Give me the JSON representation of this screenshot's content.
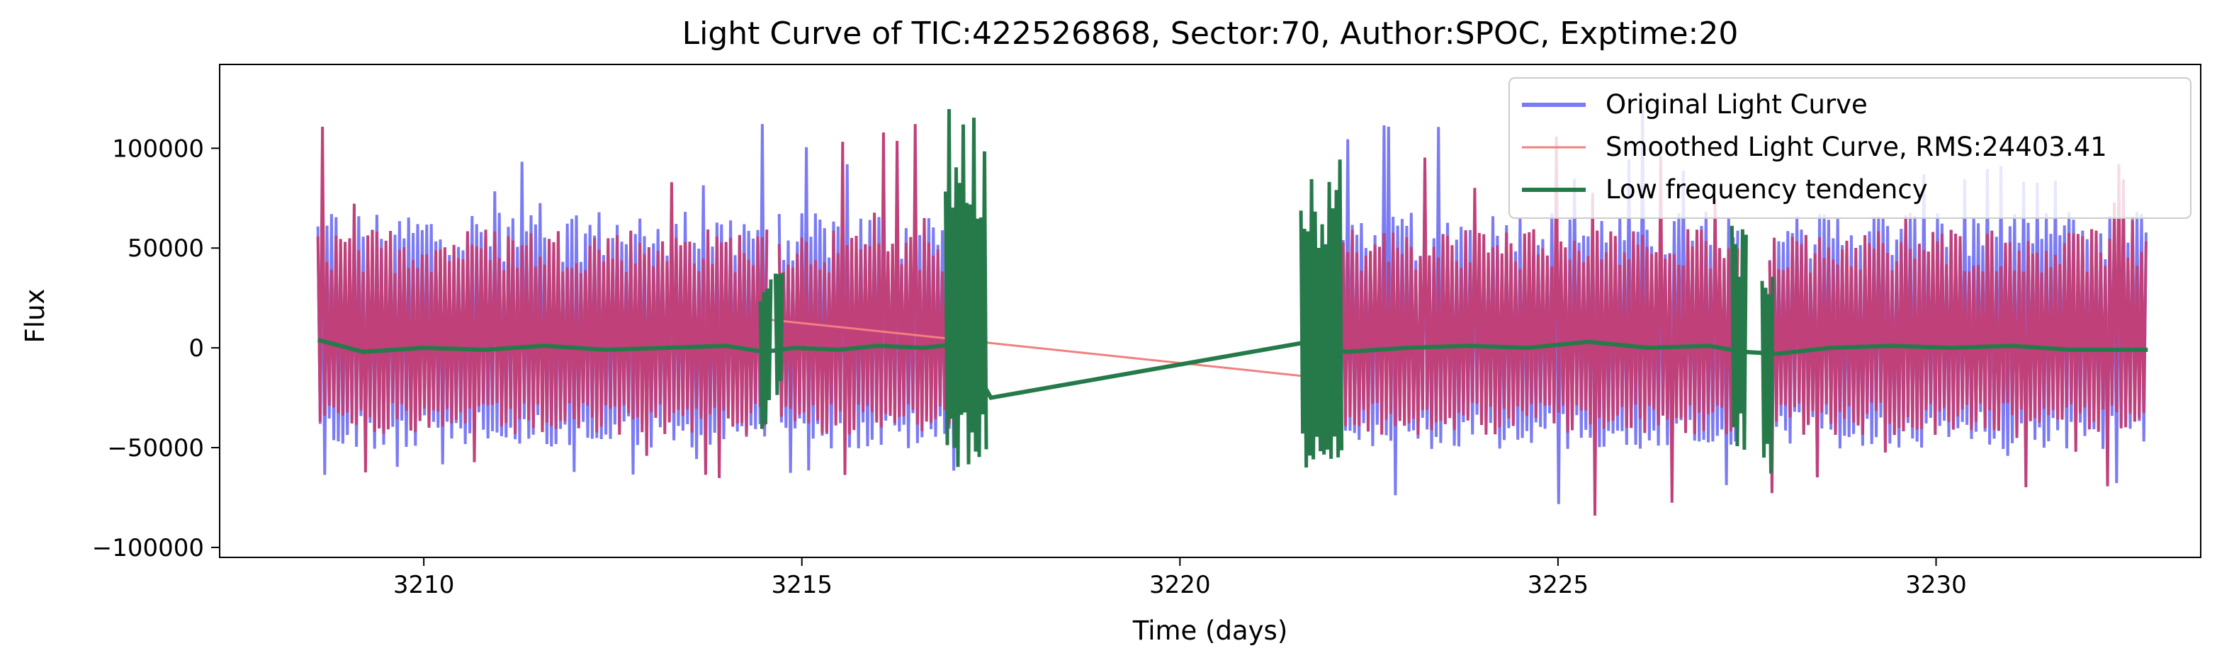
{
  "chart_data": {
    "type": "line",
    "title": "Light Curve of TIC:422526868, Sector:70, Author:SPOC, Exptime:20",
    "xlabel": "Time (days)",
    "ylabel": "Flux",
    "xlim": [
      3207.3,
      3233.5
    ],
    "ylim": [
      -105000,
      142000
    ],
    "xticks": [
      3210,
      3215,
      3220,
      3225,
      3230
    ],
    "xtick_labels": [
      "3210",
      "3215",
      "3220",
      "3225",
      "3230"
    ],
    "yticks": [
      -100000,
      -50000,
      0,
      50000,
      100000
    ],
    "ytick_labels": [
      "−100000",
      "−50000",
      "0",
      "50000",
      "100000"
    ],
    "grid": false,
    "legend_position": "top-right",
    "colors": {
      "original": "#7b7bf5",
      "smoothed": "#f08080",
      "smoothed_band": "#c0407a",
      "trend": "#267a4a"
    },
    "series": [
      {
        "name": "Original Light Curve",
        "style": "dense oscillating band",
        "segments": [
          {
            "x_start": 3208.6,
            "x_end": 3214.55,
            "y_min": -75000,
            "y_max": 125000
          },
          {
            "x_start": 3214.7,
            "x_end": 3217.1,
            "y_min": -70000,
            "y_max": 122000
          },
          {
            "x_start": 3222.1,
            "x_end": 3227.4,
            "y_min": -92000,
            "y_max": 130000
          },
          {
            "x_start": 3227.8,
            "x_end": 3232.8,
            "y_min": -80000,
            "y_max": 100000
          }
        ]
      },
      {
        "name": "Smoothed Light Curve, RMS:24403.41",
        "style": "dense oscillating band",
        "bridge_points": [
          [
            3214.6,
            14000
          ],
          [
            3222.1,
            -16000
          ]
        ]
      },
      {
        "name": "Low frequency tendency",
        "x": [
          3208.6,
          3209.2,
          3210.0,
          3210.8,
          3211.6,
          3212.4,
          3213.2,
          3214.0,
          3214.5,
          3214.9,
          3215.5,
          3216.0,
          3216.6,
          3217.1,
          3217.5,
          3221.7,
          3222.2,
          3223.0,
          3223.8,
          3224.6,
          3225.4,
          3226.2,
          3227.0,
          3227.45,
          3227.9,
          3228.6,
          3229.4,
          3230.2,
          3231.0,
          3231.8,
          3232.8
        ],
        "y": [
          4000,
          -2000,
          0,
          -1000,
          1000,
          -1000,
          0,
          1000,
          -2000,
          0,
          -1000,
          1000,
          0,
          2000,
          -25000,
          3000,
          -2000,
          0,
          1000,
          0,
          3000,
          0,
          1000,
          -2000,
          -3000,
          0,
          1000,
          0,
          1000,
          -1000,
          -1000
        ],
        "bursts": [
          {
            "x_start": 3214.45,
            "x_end": 3214.6,
            "y_min": -48000,
            "y_max": 42000
          },
          {
            "x_start": 3214.65,
            "x_end": 3214.75,
            "y_min": -30000,
            "y_max": 53000
          },
          {
            "x_start": 3216.9,
            "x_end": 3217.45,
            "y_min": -60000,
            "y_max": 122000
          },
          {
            "x_start": 3221.6,
            "x_end": 3222.15,
            "y_min": -60000,
            "y_max": 100000
          },
          {
            "x_start": 3227.3,
            "x_end": 3227.5,
            "y_min": -58000,
            "y_max": 70000
          },
          {
            "x_start": 3227.7,
            "x_end": 3227.85,
            "y_min": -66000,
            "y_max": 40000
          }
        ]
      }
    ]
  }
}
